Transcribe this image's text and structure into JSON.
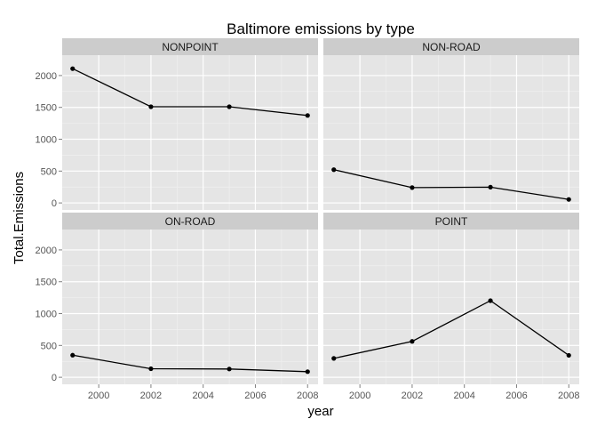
{
  "chart_data": {
    "type": "line",
    "title": "Baltimore emissions by type",
    "xlabel": "year",
    "ylabel": "Total.Emissions",
    "xlim": [
      1998.6,
      2008.4
    ],
    "ylim": [
      -110,
      2320
    ],
    "xticks": [
      2000,
      2002,
      2004,
      2006,
      2008
    ],
    "yticks": [
      0,
      500,
      1000,
      1500,
      2000
    ],
    "x": [
      1999,
      2002,
      2005,
      2008
    ],
    "grid": true,
    "background": "#e5e5e5",
    "strip_color": "#cccccc",
    "line_color": "#000000",
    "panels": [
      {
        "name": "NONPOINT",
        "values": [
          2108,
          1510,
          1510,
          1373
        ]
      },
      {
        "name": "NON-ROAD",
        "values": [
          522,
          241,
          248,
          55
        ]
      },
      {
        "name": "ON-ROAD",
        "values": [
          347,
          134,
          130,
          88
        ]
      },
      {
        "name": "POINT",
        "values": [
          297,
          564,
          1203,
          345
        ]
      }
    ]
  }
}
